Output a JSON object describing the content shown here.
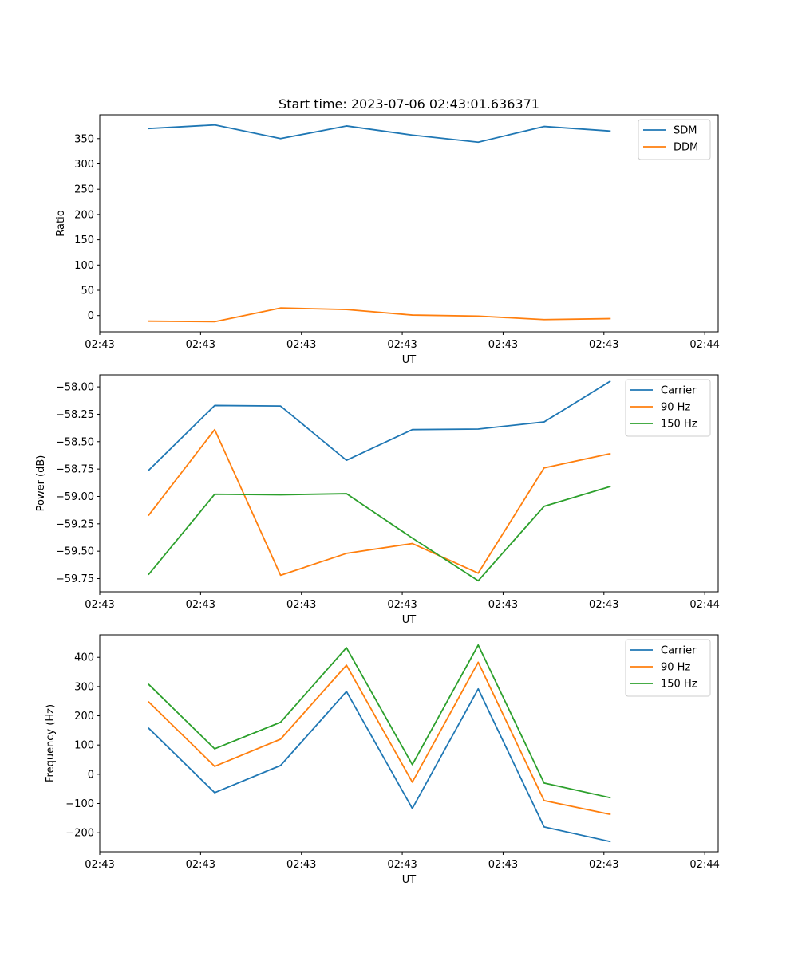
{
  "figure": {
    "title": "Start time: 2023-07-06 02:43:01.636371"
  },
  "chart_data": [
    {
      "type": "line",
      "xlabel": "UT",
      "ylabel": "Ratio",
      "xlim": [
        0,
        9.2
      ],
      "ylim": [
        -32,
        397
      ],
      "yticks": [
        0,
        50,
        100,
        150,
        200,
        250,
        300,
        350
      ],
      "yticklabels": [
        "0",
        "50",
        "100",
        "150",
        "200",
        "250",
        "300",
        "350"
      ],
      "xticks": [
        0,
        1.5,
        3,
        4.5,
        6,
        7.5,
        9
      ],
      "xticklabels": [
        "02:43",
        "02:43",
        "02:43",
        "02:43",
        "02:43",
        "02:43",
        "02:44"
      ],
      "x": [
        0.73,
        1.71,
        2.69,
        3.67,
        4.65,
        5.63,
        6.61,
        7.59
      ],
      "legend_position": "top-right",
      "series": [
        {
          "name": "SDM",
          "color": "#1f77b4",
          "values": [
            370,
            377,
            350,
            375,
            357,
            343,
            374,
            365
          ]
        },
        {
          "name": "DDM",
          "color": "#ff7f0e",
          "values": [
            -11,
            -12,
            15,
            12,
            1,
            -1,
            -8,
            -6
          ]
        }
      ]
    },
    {
      "type": "line",
      "xlabel": "UT",
      "ylabel": "Power (dB)",
      "xlim": [
        0,
        9.2
      ],
      "ylim": [
        -59.87,
        -57.89
      ],
      "yticks": [
        -59.75,
        -59.5,
        -59.25,
        -59.0,
        -58.75,
        -58.5,
        -58.25,
        -58.0
      ],
      "yticklabels": [
        "−59.75",
        "−59.50",
        "−59.25",
        "−59.00",
        "−58.75",
        "−58.50",
        "−58.25",
        "−58.00"
      ],
      "xticks": [
        0,
        1.5,
        3,
        4.5,
        6,
        7.5,
        9
      ],
      "xticklabels": [
        "02:43",
        "02:43",
        "02:43",
        "02:43",
        "02:43",
        "02:43",
        "02:44"
      ],
      "x": [
        0.73,
        1.71,
        2.69,
        3.67,
        4.65,
        5.63,
        6.61,
        7.59
      ],
      "legend_position": "top-right",
      "series": [
        {
          "name": "Carrier",
          "color": "#1f77b4",
          "values": [
            -58.76,
            -58.17,
            -58.175,
            -58.67,
            -58.39,
            -58.385,
            -58.32,
            -57.95
          ]
        },
        {
          "name": "90 Hz",
          "color": "#ff7f0e",
          "values": [
            -59.17,
            -58.39,
            -59.72,
            -59.52,
            -59.43,
            -59.7,
            -58.74,
            -58.61
          ]
        },
        {
          "name": "150 Hz",
          "color": "#2ca02c",
          "values": [
            -59.71,
            -58.98,
            -58.985,
            -58.975,
            -59.38,
            -59.77,
            -59.09,
            -58.91
          ]
        }
      ]
    },
    {
      "type": "line",
      "xlabel": "UT",
      "ylabel": "Frequency (Hz)",
      "xlim": [
        0,
        9.2
      ],
      "ylim": [
        -265,
        477
      ],
      "yticks": [
        -200,
        -100,
        0,
        100,
        200,
        300,
        400
      ],
      "yticklabels": [
        "−200",
        "−100",
        "0",
        "100",
        "200",
        "300",
        "400"
      ],
      "xticks": [
        0,
        1.5,
        3,
        4.5,
        6,
        7.5,
        9
      ],
      "xticklabels": [
        "02:43",
        "02:43",
        "02:43",
        "02:43",
        "02:43",
        "02:43",
        "02:44"
      ],
      "x": [
        0.73,
        1.71,
        2.69,
        3.67,
        4.65,
        5.63,
        6.61,
        7.59
      ],
      "legend_position": "top-right",
      "series": [
        {
          "name": "Carrier",
          "color": "#1f77b4",
          "values": [
            157,
            -63,
            30,
            283,
            -117,
            292,
            -180,
            -230
          ]
        },
        {
          "name": "90 Hz",
          "color": "#ff7f0e",
          "values": [
            247,
            27,
            120,
            373,
            -27,
            383,
            -90,
            -137
          ]
        },
        {
          "name": "150 Hz",
          "color": "#2ca02c",
          "values": [
            307,
            87,
            178,
            433,
            33,
            442,
            -30,
            -80
          ]
        }
      ]
    }
  ]
}
